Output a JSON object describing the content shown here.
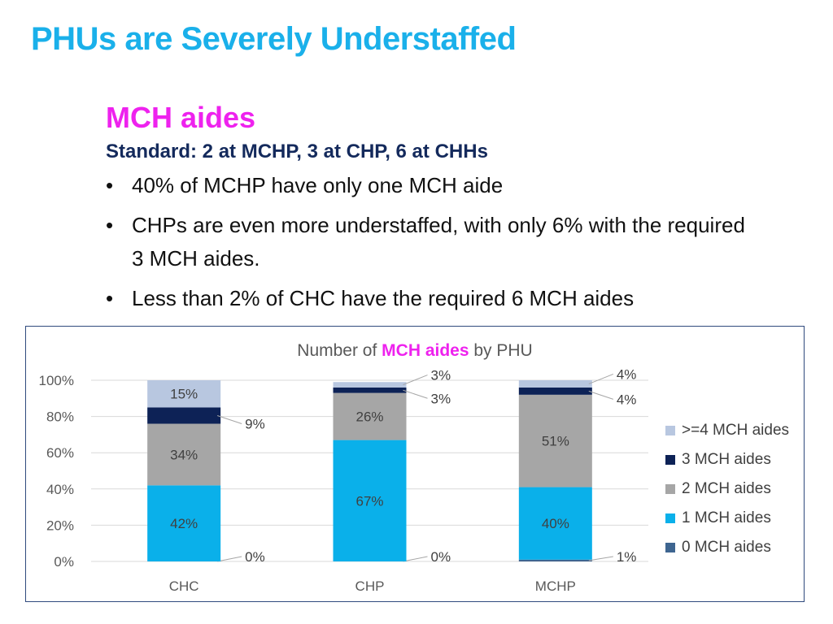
{
  "slide": {
    "title": "PHUs are Severely Understaffed",
    "heading": "MCH aides",
    "standard": "Standard: 2 at MCHP, 3 at CHP, 6 at CHHs",
    "bullets": [
      "40% of MCHP have only one MCH aide",
      "CHPs are even more understaffed, with only 6% with the required 3 MCH aides.",
      "Less than 2% of CHC have the required 6 MCH aides"
    ],
    "bullet_glyph": "•"
  },
  "chart_data": {
    "type": "bar",
    "stacked": true,
    "title_parts": [
      "Number of ",
      "MCH aides",
      " by PHU"
    ],
    "title_highlight_color": "#ee22ee",
    "categories": [
      "CHC",
      "CHP",
      "MCHP"
    ],
    "series": [
      {
        "name": "0 MCH aides",
        "color": "#3e6590",
        "values": [
          0,
          0,
          1
        ],
        "labels": [
          "0%",
          "0%",
          "1%"
        ]
      },
      {
        "name": "1 MCH aides",
        "color": "#0ab0ea",
        "values": [
          42,
          67,
          40
        ],
        "labels": [
          "42%",
          "67%",
          "40%"
        ]
      },
      {
        "name": "2 MCH aides",
        "color": "#a6a6a6",
        "values": [
          34,
          26,
          51
        ],
        "labels": [
          "34%",
          "26%",
          "51%"
        ]
      },
      {
        "name": "3 MCH aides",
        "color": "#0d2256",
        "values": [
          9,
          3,
          4
        ],
        "labels": [
          "9%",
          "3%",
          "4%"
        ]
      },
      {
        "name": ">=4 MCH aides",
        "color": "#b8c7e0",
        "values": [
          15,
          3,
          4
        ],
        "labels": [
          "15%",
          "3%",
          "4%"
        ]
      }
    ],
    "ylim": [
      0,
      100
    ],
    "yticks": [
      0,
      20,
      40,
      60,
      80,
      100
    ],
    "ytick_labels": [
      "0%",
      "20%",
      "40%",
      "60%",
      "80%",
      "100%"
    ],
    "grid": true,
    "legend_position": "right"
  }
}
